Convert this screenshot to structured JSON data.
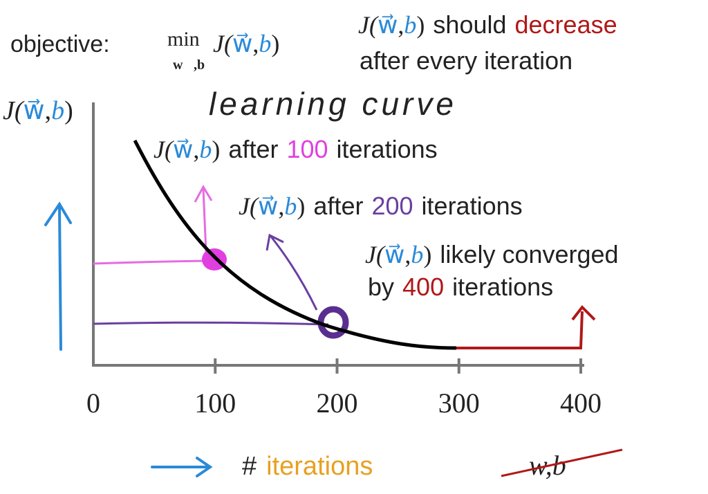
{
  "cost": {
    "J": "J(",
    "w": "w⃗",
    "sep": ",",
    "b": "b",
    "close": ")"
  },
  "objective": {
    "label": "objective:",
    "min": "min",
    "subscript": "w⃗,b"
  },
  "note": {
    "should": "should",
    "decrease": "decrease",
    "line2": "after every iteration"
  },
  "annotation_title": "learning curve",
  "callouts": [
    {
      "prefix": "after",
      "number": 100,
      "suffix": "iterations"
    },
    {
      "prefix": "after",
      "number": 200,
      "suffix": "iterations"
    },
    {
      "prefix": "likely converged",
      "line2_prefix": "by",
      "number": 400,
      "suffix": "iterations"
    }
  ],
  "x_ticks": [
    0,
    100,
    200,
    300,
    400
  ],
  "x_axis_label": {
    "hash": "#",
    "text": "iterations"
  },
  "crossed_out": "w,b"
}
